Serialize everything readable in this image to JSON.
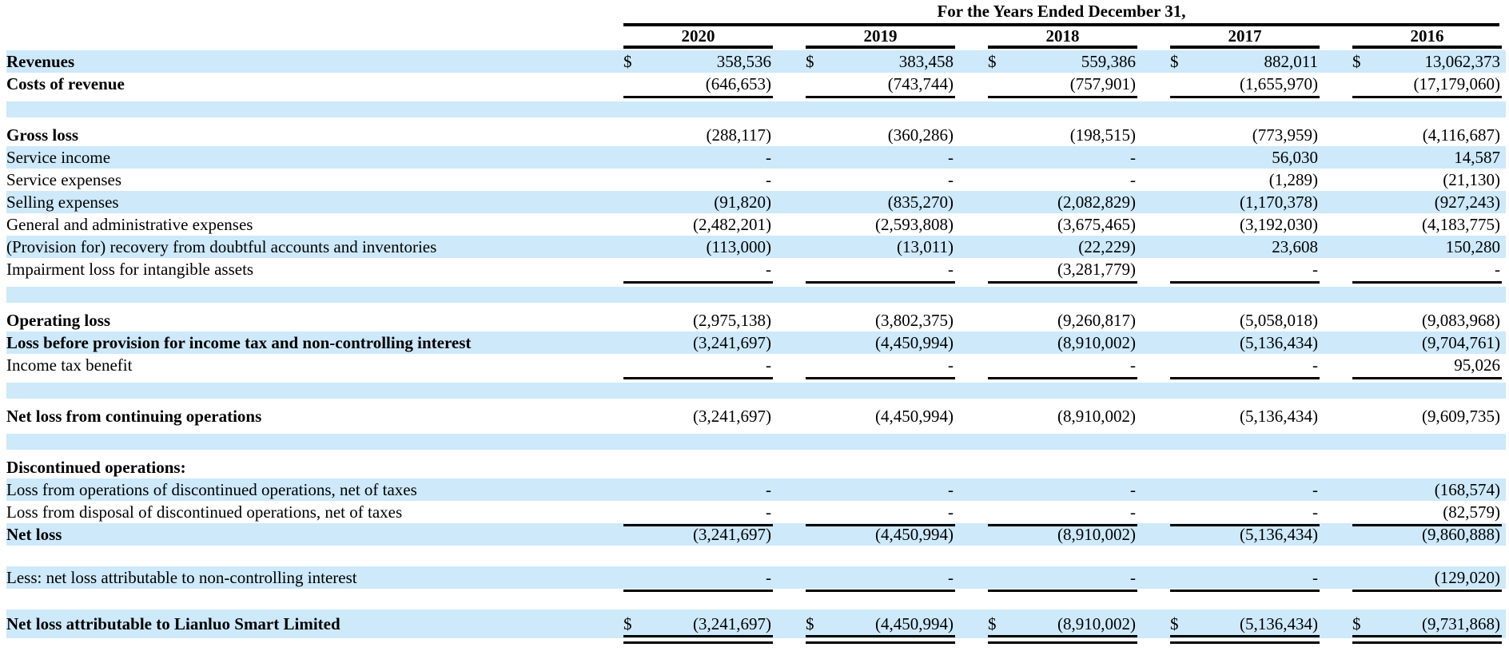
{
  "table": {
    "title": "For the Years Ended December 31,",
    "currency_symbol": "$",
    "years": [
      "2020",
      "2019",
      "2018",
      "2017",
      "2016"
    ],
    "rows": [
      {
        "label": "Revenues",
        "bold": true,
        "dollar": true,
        "bg": "blue",
        "values": [
          "358,536",
          "383,458",
          "559,386",
          "882,011",
          "13,062,373"
        ]
      },
      {
        "label": "Costs of revenue",
        "bold": true,
        "bg": "white",
        "underline": "single",
        "values": [
          "(646,653)",
          "(743,744)",
          "(757,901)",
          "(1,655,970)",
          "(17,179,060)"
        ]
      },
      {
        "spacer": true,
        "bg": "blue"
      },
      {
        "label": "Gross loss",
        "bold": true,
        "bg": "white",
        "values": [
          "(288,117)",
          "(360,286)",
          "(198,515)",
          "(773,959)",
          "(4,116,687)"
        ]
      },
      {
        "label": "Service income",
        "bold": false,
        "bg": "blue",
        "values": [
          "-",
          "-",
          "-",
          "56,030",
          "14,587"
        ]
      },
      {
        "label": "Service expenses",
        "bold": false,
        "bg": "white",
        "values": [
          "-",
          "-",
          "-",
          "(1,289)",
          "(21,130)"
        ]
      },
      {
        "label": "Selling expenses",
        "bold": false,
        "bg": "blue",
        "values": [
          "(91,820)",
          "(835,270)",
          "(2,082,829)",
          "(1,170,378)",
          "(927,243)"
        ]
      },
      {
        "label": "General and administrative expenses",
        "bold": false,
        "bg": "white",
        "values": [
          "(2,482,201)",
          "(2,593,808)",
          "(3,675,465)",
          "(3,192,030)",
          "(4,183,775)"
        ]
      },
      {
        "label": "(Provision for) recovery from doubtful accounts and inventories",
        "bold": false,
        "bg": "blue",
        "values": [
          "(113,000)",
          "(13,011)",
          "(22,229)",
          "23,608",
          "150,280"
        ]
      },
      {
        "label": "Impairment loss for intangible assets",
        "bold": false,
        "bg": "white",
        "underline": "single",
        "values": [
          "-",
          "-",
          "(3,281,779)",
          "-",
          "-"
        ]
      },
      {
        "spacer": true,
        "bg": "blue"
      },
      {
        "label": "Operating loss",
        "bold": true,
        "bg": "white",
        "values": [
          "(2,975,138)",
          "(3,802,375)",
          "(9,260,817)",
          "(5,058,018)",
          "(9,083,968)"
        ]
      },
      {
        "label": "Loss before provision for income tax and non-controlling interest",
        "bold": true,
        "bg": "blue",
        "values": [
          "(3,241,697)",
          "(4,450,994)",
          "(8,910,002)",
          "(5,136,434)",
          "(9,704,761)"
        ]
      },
      {
        "label": "Income tax benefit",
        "bold": false,
        "bg": "white",
        "underline": "single",
        "values": [
          "-",
          "-",
          "-",
          "-",
          "95,026"
        ]
      },
      {
        "spacer": true,
        "bg": "blue"
      },
      {
        "label": "Net loss from continuing operations",
        "bold": true,
        "bg": "white",
        "values": [
          "(3,241,697)",
          "(4,450,994)",
          "(8,910,002)",
          "(5,136,434)",
          "(9,609,735)"
        ]
      },
      {
        "spacer": true,
        "bg": "blue"
      },
      {
        "label": "Discontinued operations:",
        "bold": true,
        "bg": "white",
        "values": [
          "",
          "",
          "",
          "",
          ""
        ]
      },
      {
        "label": "Loss from operations of discontinued operations, net of taxes",
        "bold": false,
        "bg": "blue",
        "values": [
          "-",
          "-",
          "-",
          "-",
          "(168,574)"
        ]
      },
      {
        "label": "Loss from disposal of discontinued operations, net of taxes",
        "bold": false,
        "bg": "white",
        "underline": "single",
        "values": [
          "-",
          "-",
          "-",
          "-",
          "(82,579)"
        ]
      },
      {
        "label": "Net loss",
        "bold": true,
        "bg": "blue",
        "values": [
          "(3,241,697)",
          "(4,450,994)",
          "(8,910,002)",
          "(5,136,434)",
          "(9,860,888)"
        ]
      },
      {
        "spacer": true,
        "bg": "white"
      },
      {
        "label": "Less: net loss attributable to non-controlling interest",
        "bold": false,
        "bg": "blue",
        "underline": "single",
        "values": [
          "-",
          "-",
          "-",
          "-",
          "(129,020)"
        ]
      },
      {
        "spacer": true,
        "bg": "white"
      },
      {
        "label": "Net loss attributable to Lianluo Smart Limited",
        "bold": true,
        "dollar": true,
        "bg": "blue",
        "underline": "double",
        "tall": true,
        "values": [
          "(3,241,697)",
          "(4,450,994)",
          "(8,910,002)",
          "(5,136,434)",
          "(9,731,868)"
        ]
      },
      {
        "spacer": true,
        "bg": "white"
      }
    ]
  },
  "colors": {
    "stripe_blue": "#cde9fa",
    "rule_black": "#000000",
    "text": "#000000",
    "background": "#ffffff"
  }
}
